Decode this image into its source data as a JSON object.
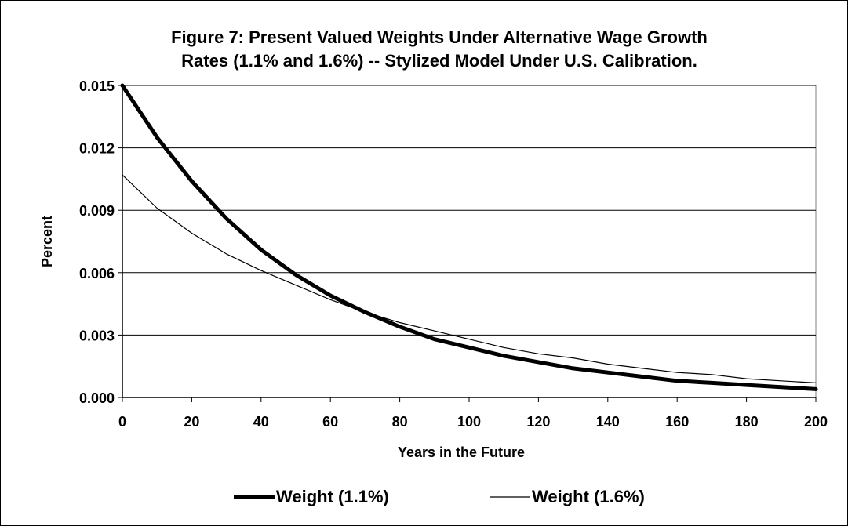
{
  "chart_data": {
    "type": "line",
    "title_line1": "Figure 7: Present Valued Weights Under Alternative Wage Growth",
    "title_line2": "Rates (1.1% and 1.6%) -- Stylized Model Under U.S. Calibration.",
    "xlabel": "Years in the Future",
    "ylabel": "Percent",
    "xlim": [
      0,
      200
    ],
    "ylim": [
      0,
      0.015
    ],
    "xticks": [
      "0",
      "20",
      "40",
      "60",
      "80",
      "100",
      "120",
      "140",
      "160",
      "180",
      "200"
    ],
    "yticks": [
      "0.000",
      "0.003",
      "0.006",
      "0.009",
      "0.012",
      "0.015"
    ],
    "grid": "horizontal",
    "legend_position": "bottom",
    "x": [
      0,
      10,
      20,
      30,
      40,
      50,
      60,
      70,
      80,
      90,
      100,
      110,
      120,
      130,
      140,
      150,
      160,
      170,
      180,
      190,
      200
    ],
    "series": [
      {
        "name": "Weight (1.1%)",
        "color": "#000000",
        "style": "thick",
        "values": [
          0.015,
          0.0125,
          0.0104,
          0.0086,
          0.0071,
          0.0059,
          0.0049,
          0.0041,
          0.0034,
          0.0028,
          0.0024,
          0.002,
          0.0017,
          0.0014,
          0.0012,
          0.001,
          0.0008,
          0.0007,
          0.0006,
          0.0005,
          0.0004
        ]
      },
      {
        "name": "Weight (1.6%)",
        "color": "#000000",
        "style": "thin",
        "values": [
          0.0107,
          0.0091,
          0.0079,
          0.0069,
          0.0061,
          0.0054,
          0.0047,
          0.0041,
          0.0036,
          0.0032,
          0.0028,
          0.0024,
          0.0021,
          0.0019,
          0.0016,
          0.0014,
          0.0012,
          0.0011,
          0.0009,
          0.0008,
          0.0007
        ]
      }
    ]
  }
}
